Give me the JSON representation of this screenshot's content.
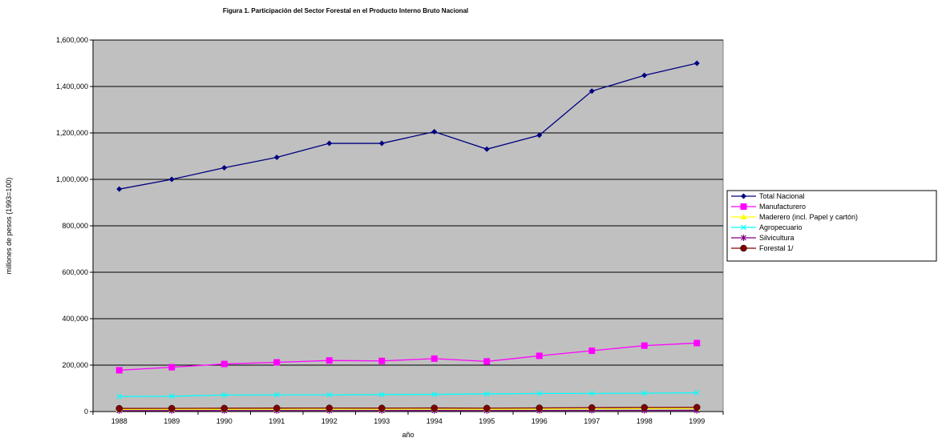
{
  "chart_data": {
    "type": "line",
    "title": "Figura 1. Participación del Sector Forestal en el Producto Interno Bruto Nacional",
    "xlabel": "año",
    "ylabel": "millones de pesos (1993=100)",
    "ylim": [
      0,
      1600000
    ],
    "y_ticks": [
      "0",
      "200,000",
      "400,000",
      "600,000",
      "800,000",
      "1,000,000",
      "1,200,000",
      "1,400,000",
      "1,600,000"
    ],
    "y_tick_values": [
      0,
      200000,
      400000,
      600000,
      800000,
      1000000,
      1200000,
      1400000,
      1600000
    ],
    "categories": [
      "1988",
      "1989",
      "1990",
      "1991",
      "1992",
      "1993",
      "1994",
      "1995",
      "1996",
      "1997",
      "1998",
      "1999"
    ],
    "grid": "horizontal",
    "legend_position": "right",
    "plot_background": "#c0c0c0",
    "series": [
      {
        "name": "Total Nacional",
        "color": "#000080",
        "marker": "diamond",
        "values": [
          958000,
          1000000,
          1050000,
          1095000,
          1155000,
          1155000,
          1205000,
          1130000,
          1190000,
          1380000,
          1448000,
          1500000
        ]
      },
      {
        "name": "Manufacturero",
        "color": "#ff00ff",
        "marker": "square",
        "values": [
          178000,
          191000,
          205000,
          212000,
          220000,
          218000,
          228000,
          216000,
          240000,
          262000,
          284000,
          295000
        ]
      },
      {
        "name": "Maderero (incl. Papel y cartón)",
        "color": "#ffff00",
        "marker": "triangle",
        "values": [
          9500,
          9800,
          10200,
          10500,
          10800,
          10500,
          10800,
          10200,
          11000,
          12000,
          12800,
          13300
        ]
      },
      {
        "name": "Agropecuario",
        "color": "#00ffff",
        "marker": "x",
        "values": [
          65000,
          66000,
          71000,
          72000,
          72000,
          73000,
          74000,
          76000,
          78000,
          78000,
          79000,
          81000
        ]
      },
      {
        "name": "Silvicultura",
        "color": "#800080",
        "marker": "star",
        "values": [
          4000,
          4100,
          4200,
          4300,
          4400,
          4400,
          4500,
          4400,
          4600,
          4700,
          4800,
          4900
        ]
      },
      {
        "name": "Forestal 1/",
        "color": "#800000",
        "marker": "circle",
        "values": [
          13500,
          13900,
          14400,
          14800,
          15200,
          14900,
          15300,
          14600,
          15600,
          16700,
          17600,
          18200
        ]
      }
    ]
  }
}
